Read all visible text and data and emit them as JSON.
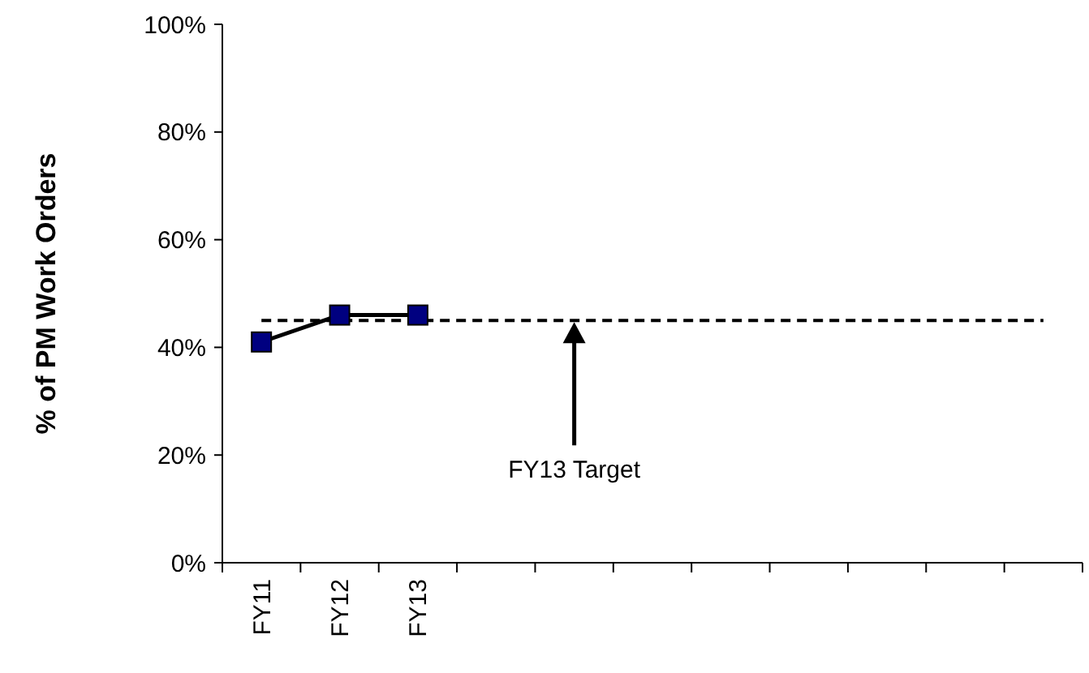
{
  "chart_data": {
    "type": "line",
    "ylabel": "% of PM Work Orders",
    "categories": [
      "FY11",
      "FY12",
      "FY13",
      null,
      null,
      null,
      null,
      null,
      null,
      null,
      null
    ],
    "series": [
      {
        "color": "#000080",
        "values": [
          41,
          46,
          46,
          null,
          null,
          null,
          null,
          null,
          null,
          null,
          null
        ]
      }
    ],
    "ylim": [
      0,
      100
    ],
    "yticks": [
      {
        "value": 0,
        "label": "0%"
      },
      {
        "value": 20,
        "label": "20%"
      },
      {
        "value": 40,
        "label": "40%"
      },
      {
        "value": 60,
        "label": "60%"
      },
      {
        "value": 80,
        "label": "80%"
      },
      {
        "value": 100,
        "label": "100%"
      }
    ],
    "ref_lines": [
      {
        "axis": "y",
        "value": 45,
        "label": "FY13 Target",
        "color": "#000000",
        "line_style": "dashed"
      }
    ],
    "marker": "square",
    "grid": false
  }
}
